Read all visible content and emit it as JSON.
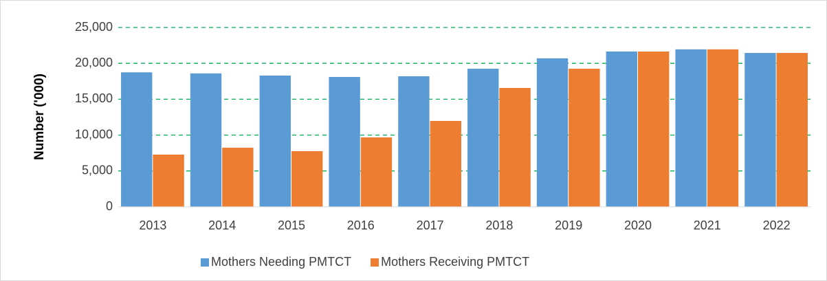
{
  "chart_data": {
    "type": "bar",
    "y_label": "Number ('000)",
    "categories": [
      "2013",
      "2014",
      "2015",
      "2016",
      "2017",
      "2018",
      "2019",
      "2020",
      "2021",
      "2022"
    ],
    "series": [
      {
        "name": "Mothers Needing PMTCT",
        "color": "#5b9bd5",
        "values": [
          18750,
          18600,
          18300,
          18100,
          18200,
          19250,
          20700,
          21650,
          21950,
          21450
        ]
      },
      {
        "name": "Mothers Receiving PMTCT",
        "color": "#ed7d31",
        "values": [
          7280,
          8240,
          7760,
          9670,
          11970,
          16570,
          19250,
          21650,
          21950,
          21450
        ]
      }
    ],
    "ylim": [
      0,
      25000
    ],
    "yticks": [
      0,
      {
        "value": 5000,
        "label": "5,000"
      },
      {
        "value": 10000,
        "label": "10,000"
      },
      {
        "value": 15000,
        "label": "15,000"
      },
      {
        "value": 20000,
        "label": "20,000"
      },
      {
        "value": 25000,
        "label": "25,000"
      }
    ],
    "grid": true,
    "legend": "bottom"
  }
}
